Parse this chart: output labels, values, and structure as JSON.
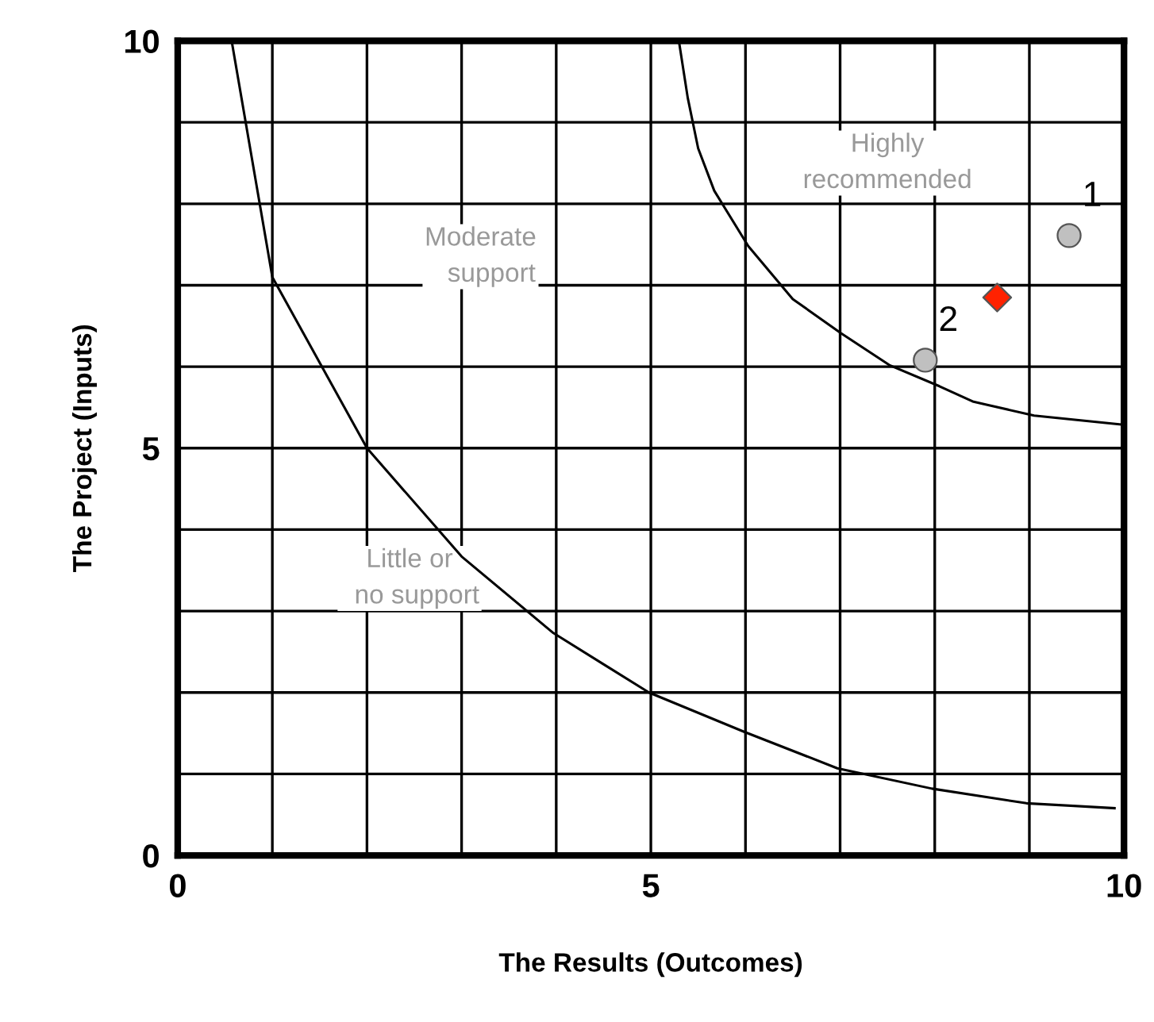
{
  "chart_data": {
    "type": "line",
    "xlabel": "The Results (Outcomes)",
    "ylabel": "The Project (Inputs)",
    "xlim": [
      0,
      10
    ],
    "ylim": [
      0,
      10
    ],
    "xticks": [
      0,
      {
        "value": 1,
        "label": null
      },
      {
        "value": 2,
        "label": null
      },
      {
        "value": 3,
        "label": null
      },
      {
        "value": 4,
        "label": null
      },
      5,
      {
        "value": 6,
        "label": null
      },
      {
        "value": 7,
        "label": null
      },
      {
        "value": 8,
        "label": null
      },
      {
        "value": 9,
        "label": null
      },
      10
    ],
    "yticks": [
      0,
      {
        "value": 1,
        "label": null
      },
      {
        "value": 2,
        "label": null
      },
      {
        "value": 3,
        "label": null
      },
      {
        "value": 4,
        "label": null
      },
      5,
      {
        "value": 6,
        "label": null
      },
      {
        "value": 7,
        "label": null
      },
      {
        "value": 8,
        "label": null
      },
      {
        "value": 9,
        "label": null
      },
      10
    ],
    "grid": true,
    "series": [
      {
        "color": "#000000",
        "x": [
          0.57,
          1.0,
          2.0,
          3.0,
          3.97,
          4.98,
          5.98,
          6.97,
          7.97,
          8.97,
          9.9
        ],
        "values": [
          10,
          7.1,
          5.0,
          3.67,
          2.73,
          2.0,
          1.52,
          1.07,
          0.82,
          0.64,
          0.58
        ]
      },
      {
        "color": "#000000",
        "x": [
          5.3,
          5.39,
          5.5,
          5.67,
          6.03,
          6.5,
          7.01,
          7.52,
          8.05,
          8.41,
          9.05,
          9.98
        ],
        "values": [
          9.97,
          9.3,
          8.68,
          8.16,
          7.48,
          6.83,
          6.41,
          6.02,
          5.76,
          5.57,
          5.4,
          5.29
        ]
      },
      {
        "type": "scatter",
        "color": "#c0c0c0",
        "marker": "circle",
        "x": [
          9.42,
          7.9
        ],
        "values": [
          7.61,
          6.08
        ]
      },
      {
        "type": "scatter",
        "color": "#ff2200",
        "marker": "diamond",
        "x": [
          8.66
        ],
        "values": [
          6.85
        ]
      }
    ],
    "annotations": [
      {
        "text": "1",
        "x": 9.42,
        "y": 7.61
      },
      {
        "text": "2",
        "x": 7.9,
        "y": 6.08
      },
      "Highly\nrecommended",
      "Moderate\n   support",
      "Little or\n  no support"
    ]
  }
}
